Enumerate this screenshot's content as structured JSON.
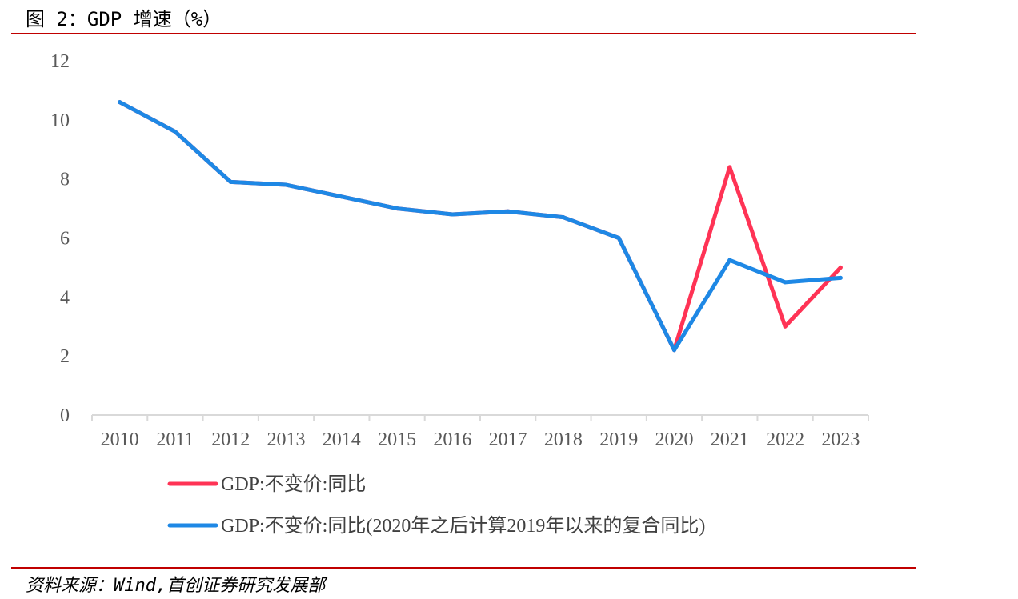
{
  "header": {
    "title": "图 2：GDP 增速（%）"
  },
  "footer": {
    "source": "资料来源：Wind,首创证券研究发展部"
  },
  "colors": {
    "rule": "#c00000",
    "series_red": "#ff3355",
    "series_blue": "#1e88e5",
    "axis": "#d9d9d9",
    "tick_text": "#595959"
  },
  "chart_data": {
    "type": "line",
    "x": [
      "2010",
      "2011",
      "2012",
      "2013",
      "2014",
      "2015",
      "2016",
      "2017",
      "2018",
      "2019",
      "2020",
      "2021",
      "2022",
      "2023"
    ],
    "ylim": [
      0,
      12
    ],
    "yticks": [
      "0",
      "2",
      "4",
      "6",
      "8",
      "10",
      "12"
    ],
    "grid": false,
    "legend_position": "bottom-left",
    "series": [
      {
        "name": "GDP:不变价:同比",
        "color": "#ff3355",
        "values": [
          10.6,
          9.6,
          7.9,
          7.8,
          7.4,
          7.0,
          6.8,
          6.9,
          6.7,
          6.0,
          2.2,
          8.4,
          3.0,
          5.0
        ]
      },
      {
        "name": "GDP:不变价:同比(2020年之后计算2019年以来的复合同比)",
        "color": "#1e88e5",
        "values": [
          10.6,
          9.6,
          7.9,
          7.8,
          7.4,
          7.0,
          6.8,
          6.9,
          6.7,
          6.0,
          2.2,
          5.25,
          4.5,
          4.65
        ]
      }
    ]
  }
}
